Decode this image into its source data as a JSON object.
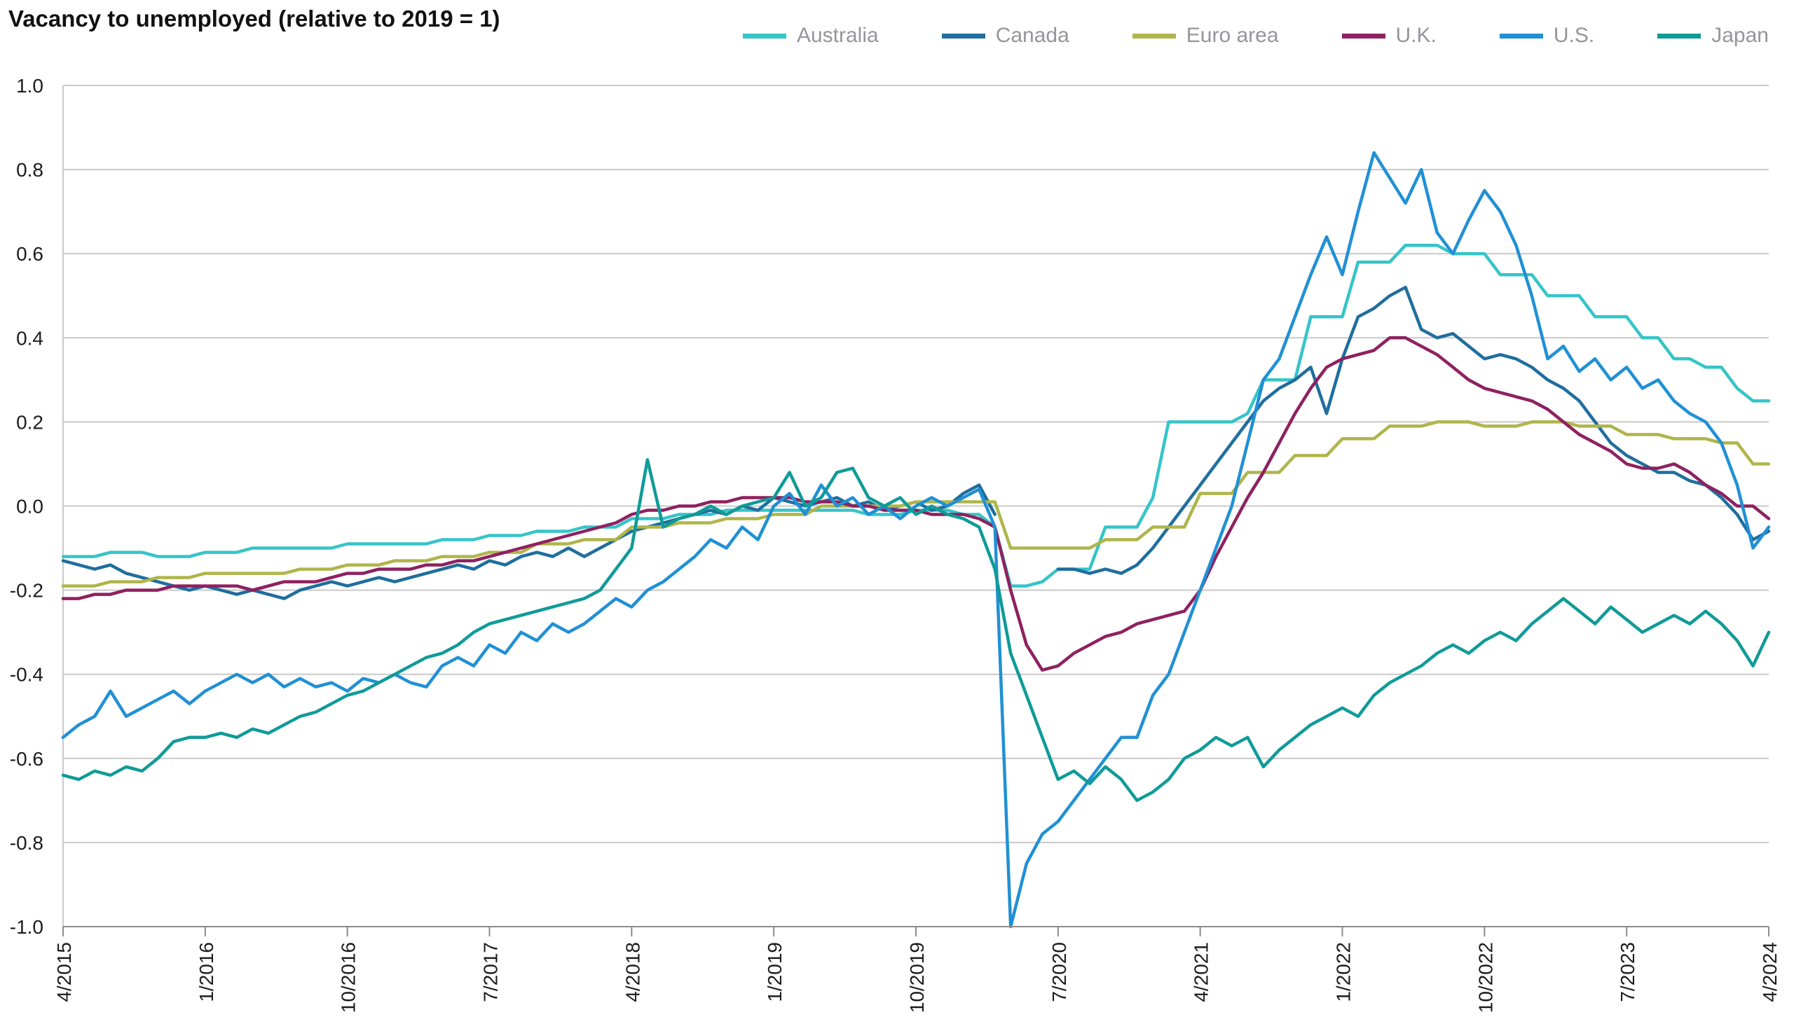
{
  "chart_data": {
    "type": "line",
    "title": "Vacancy to unemployed (relative to 2019 = 1)",
    "grid": true,
    "legend_position": "top-right",
    "x_frequency": "monthly",
    "x_range": "4/2015 to 4/2024",
    "ylim": [
      -1.0,
      1.0
    ],
    "y_ticks": [
      1.0,
      0.8,
      0.6,
      0.4,
      0.2,
      0.0,
      -0.2,
      -0.4,
      -0.6,
      -0.8,
      -1.0
    ],
    "y_tick_labels": [
      "1.0",
      "0.8",
      "0.6",
      "0.4",
      "0.2",
      "0.0",
      "-0.2",
      "-0.4",
      "-0.6",
      "-0.8",
      "-1.0"
    ],
    "x_ticks": [
      {
        "label": "4/2015",
        "index": 0
      },
      {
        "label": "1/2016",
        "index": 9
      },
      {
        "label": "10/2016",
        "index": 18
      },
      {
        "label": "7/2017",
        "index": 27
      },
      {
        "label": "4/2018",
        "index": 36
      },
      {
        "label": "1/2019",
        "index": 45
      },
      {
        "label": "10/2019",
        "index": 54
      },
      {
        "label": "7/2020",
        "index": 63
      },
      {
        "label": "4/2021",
        "index": 72
      },
      {
        "label": "1/2022",
        "index": 81
      },
      {
        "label": "10/2022",
        "index": 90
      },
      {
        "label": "7/2023",
        "index": 99
      },
      {
        "label": "4/2024",
        "index": 108
      }
    ],
    "series": [
      {
        "name": "Australia",
        "color": "#35c4c8",
        "values": [
          -0.12,
          -0.12,
          -0.12,
          -0.11,
          -0.11,
          -0.11,
          -0.12,
          -0.12,
          -0.12,
          -0.11,
          -0.11,
          -0.11,
          -0.1,
          -0.1,
          -0.1,
          -0.1,
          -0.1,
          -0.1,
          -0.09,
          -0.09,
          -0.09,
          -0.09,
          -0.09,
          -0.09,
          -0.08,
          -0.08,
          -0.08,
          -0.07,
          -0.07,
          -0.07,
          -0.06,
          -0.06,
          -0.06,
          -0.05,
          -0.05,
          -0.05,
          -0.03,
          -0.03,
          -0.03,
          -0.02,
          -0.02,
          -0.02,
          -0.01,
          -0.01,
          -0.01,
          -0.01,
          -0.01,
          -0.01,
          -0.01,
          -0.01,
          -0.01,
          -0.02,
          -0.02,
          -0.02,
          -0.01,
          -0.01,
          -0.01,
          -0.02,
          -0.02,
          -0.05,
          -0.19,
          -0.19,
          -0.18,
          -0.15,
          -0.15,
          -0.15,
          -0.05,
          -0.05,
          -0.05,
          0.02,
          0.2,
          0.2,
          0.2,
          0.2,
          0.2,
          0.22,
          0.3,
          0.3,
          0.3,
          0.45,
          0.45,
          0.45,
          0.58,
          0.58,
          0.58,
          0.62,
          0.62,
          0.62,
          0.6,
          0.6,
          0.6,
          0.55,
          0.55,
          0.55,
          0.5,
          0.5,
          0.5,
          0.45,
          0.45,
          0.45,
          0.4,
          0.4,
          0.35,
          0.35,
          0.33,
          0.33,
          0.28,
          0.25,
          0.25
        ]
      },
      {
        "name": "Canada",
        "color": "#1f6e9e",
        "values": [
          -0.13,
          -0.14,
          -0.15,
          -0.14,
          -0.16,
          -0.17,
          -0.18,
          -0.19,
          -0.2,
          -0.19,
          -0.2,
          -0.21,
          -0.2,
          -0.21,
          -0.22,
          -0.2,
          -0.19,
          -0.18,
          -0.19,
          -0.18,
          -0.17,
          -0.18,
          -0.17,
          -0.16,
          -0.15,
          -0.14,
          -0.15,
          -0.13,
          -0.14,
          -0.12,
          -0.11,
          -0.12,
          -0.1,
          -0.12,
          -0.1,
          -0.08,
          -0.06,
          -0.05,
          -0.04,
          -0.03,
          -0.02,
          -0.01,
          -0.02,
          0.0,
          -0.01,
          0.02,
          0.01,
          0.0,
          0.01,
          0.02,
          0.0,
          0.01,
          -0.01,
          0.0,
          0.01,
          -0.01,
          0.0,
          0.03,
          0.05,
          -0.02,
          null,
          null,
          null,
          -0.15,
          -0.15,
          -0.16,
          -0.15,
          -0.16,
          -0.14,
          -0.1,
          -0.05,
          0.0,
          0.05,
          0.1,
          0.15,
          0.2,
          0.25,
          0.28,
          0.3,
          0.33,
          0.22,
          0.35,
          0.45,
          0.47,
          0.5,
          0.52,
          0.42,
          0.4,
          0.41,
          0.38,
          0.35,
          0.36,
          0.35,
          0.33,
          0.3,
          0.28,
          0.25,
          0.2,
          0.15,
          0.12,
          0.1,
          0.08,
          0.08,
          0.06,
          0.05,
          0.02,
          -0.02,
          -0.08,
          -0.06
        ]
      },
      {
        "name": "Euro area",
        "color": "#afb54a",
        "values": [
          -0.19,
          -0.19,
          -0.19,
          -0.18,
          -0.18,
          -0.18,
          -0.17,
          -0.17,
          -0.17,
          -0.16,
          -0.16,
          -0.16,
          -0.16,
          -0.16,
          -0.16,
          -0.15,
          -0.15,
          -0.15,
          -0.14,
          -0.14,
          -0.14,
          -0.13,
          -0.13,
          -0.13,
          -0.12,
          -0.12,
          -0.12,
          -0.11,
          -0.11,
          -0.11,
          -0.09,
          -0.09,
          -0.09,
          -0.08,
          -0.08,
          -0.08,
          -0.05,
          -0.05,
          -0.05,
          -0.04,
          -0.04,
          -0.04,
          -0.03,
          -0.03,
          -0.03,
          -0.02,
          -0.02,
          -0.02,
          0.0,
          0.0,
          0.0,
          0.0,
          0.0,
          0.0,
          0.01,
          0.01,
          0.01,
          0.01,
          0.01,
          0.01,
          -0.1,
          -0.1,
          -0.1,
          -0.1,
          -0.1,
          -0.1,
          -0.08,
          -0.08,
          -0.08,
          -0.05,
          -0.05,
          -0.05,
          0.03,
          0.03,
          0.03,
          0.08,
          0.08,
          0.08,
          0.12,
          0.12,
          0.12,
          0.16,
          0.16,
          0.16,
          0.19,
          0.19,
          0.19,
          0.2,
          0.2,
          0.2,
          0.19,
          0.19,
          0.19,
          0.2,
          0.2,
          0.2,
          0.19,
          0.19,
          0.19,
          0.17,
          0.17,
          0.17,
          0.16,
          0.16,
          0.16,
          0.15,
          0.15,
          0.1,
          0.1
        ]
      },
      {
        "name": "U.K.",
        "color": "#8e2160",
        "values": [
          -0.22,
          -0.22,
          -0.21,
          -0.21,
          -0.2,
          -0.2,
          -0.2,
          -0.19,
          -0.19,
          -0.19,
          -0.19,
          -0.19,
          -0.2,
          -0.19,
          -0.18,
          -0.18,
          -0.18,
          -0.17,
          -0.16,
          -0.16,
          -0.15,
          -0.15,
          -0.15,
          -0.14,
          -0.14,
          -0.13,
          -0.13,
          -0.12,
          -0.11,
          -0.1,
          -0.09,
          -0.08,
          -0.07,
          -0.06,
          -0.05,
          -0.04,
          -0.02,
          -0.01,
          -0.01,
          0.0,
          0.0,
          0.01,
          0.01,
          0.02,
          0.02,
          0.02,
          0.02,
          0.01,
          0.01,
          0.01,
          0.0,
          0.0,
          -0.01,
          -0.01,
          -0.01,
          -0.02,
          -0.02,
          -0.02,
          -0.03,
          -0.05,
          -0.2,
          -0.33,
          -0.39,
          -0.38,
          -0.35,
          -0.33,
          -0.31,
          -0.3,
          -0.28,
          -0.27,
          -0.26,
          -0.25,
          -0.2,
          -0.12,
          -0.05,
          0.02,
          0.08,
          0.15,
          0.22,
          0.28,
          0.33,
          0.35,
          0.36,
          0.37,
          0.4,
          0.4,
          0.38,
          0.36,
          0.33,
          0.3,
          0.28,
          0.27,
          0.26,
          0.25,
          0.23,
          0.2,
          0.17,
          0.15,
          0.13,
          0.1,
          0.09,
          0.09,
          0.1,
          0.08,
          0.05,
          0.03,
          0.0,
          0.0,
          -0.03
        ]
      },
      {
        "name": "U.S.",
        "color": "#2090d5",
        "values": [
          -0.55,
          -0.52,
          -0.5,
          -0.44,
          -0.5,
          -0.48,
          -0.46,
          -0.44,
          -0.47,
          -0.44,
          -0.42,
          -0.4,
          -0.42,
          -0.4,
          -0.43,
          -0.41,
          -0.43,
          -0.42,
          -0.44,
          -0.41,
          -0.42,
          -0.4,
          -0.42,
          -0.43,
          -0.38,
          -0.36,
          -0.38,
          -0.33,
          -0.35,
          -0.3,
          -0.32,
          -0.28,
          -0.3,
          -0.28,
          -0.25,
          -0.22,
          -0.24,
          -0.2,
          -0.18,
          -0.15,
          -0.12,
          -0.08,
          -0.1,
          -0.05,
          -0.08,
          0.0,
          0.03,
          -0.02,
          0.05,
          0.0,
          0.02,
          -0.02,
          0.0,
          -0.03,
          0.0,
          0.02,
          0.0,
          0.02,
          0.04,
          -0.05,
          -1.0,
          -0.85,
          -0.78,
          -0.75,
          -0.7,
          -0.65,
          -0.6,
          -0.55,
          -0.55,
          -0.45,
          -0.4,
          -0.3,
          -0.2,
          -0.1,
          0.0,
          0.15,
          0.3,
          0.35,
          0.45,
          0.55,
          0.64,
          0.55,
          0.7,
          0.84,
          0.78,
          0.72,
          0.8,
          0.65,
          0.6,
          0.68,
          0.75,
          0.7,
          0.62,
          0.5,
          0.35,
          0.38,
          0.32,
          0.35,
          0.3,
          0.33,
          0.28,
          0.3,
          0.25,
          0.22,
          0.2,
          0.15,
          0.05,
          -0.1,
          -0.05
        ]
      },
      {
        "name": "Japan",
        "color": "#0f9b98",
        "values": [
          -0.64,
          -0.65,
          -0.63,
          -0.64,
          -0.62,
          -0.63,
          -0.6,
          -0.56,
          -0.55,
          -0.55,
          -0.54,
          -0.55,
          -0.53,
          -0.54,
          -0.52,
          -0.5,
          -0.49,
          -0.47,
          -0.45,
          -0.44,
          -0.42,
          -0.4,
          -0.38,
          -0.36,
          -0.35,
          -0.33,
          -0.3,
          -0.28,
          -0.27,
          -0.26,
          -0.25,
          -0.24,
          -0.23,
          -0.22,
          -0.2,
          -0.15,
          -0.1,
          0.11,
          -0.05,
          -0.03,
          -0.02,
          0.0,
          -0.02,
          0.0,
          0.01,
          0.02,
          0.08,
          0.0,
          0.02,
          0.08,
          0.09,
          0.02,
          0.0,
          0.02,
          -0.02,
          0.0,
          -0.02,
          -0.03,
          -0.05,
          -0.15,
          -0.35,
          -0.45,
          -0.55,
          -0.65,
          -0.63,
          -0.66,
          -0.62,
          -0.65,
          -0.7,
          -0.68,
          -0.65,
          -0.6,
          -0.58,
          -0.55,
          -0.57,
          -0.55,
          -0.62,
          -0.58,
          -0.55,
          -0.52,
          -0.5,
          -0.48,
          -0.5,
          -0.45,
          -0.42,
          -0.4,
          -0.38,
          -0.35,
          -0.33,
          -0.35,
          -0.32,
          -0.3,
          -0.32,
          -0.28,
          -0.25,
          -0.22,
          -0.25,
          -0.28,
          -0.24,
          -0.27,
          -0.3,
          -0.28,
          -0.26,
          -0.28,
          -0.25,
          -0.28,
          -0.32,
          -0.38,
          -0.3
        ]
      }
    ],
    "style": {
      "grid_color": "#c9c9c9",
      "axis_color": "#8c8c8c",
      "tick_label_color": "#1c1c1c",
      "legend_text_color": "#96959b",
      "background": "#ffffff"
    }
  }
}
